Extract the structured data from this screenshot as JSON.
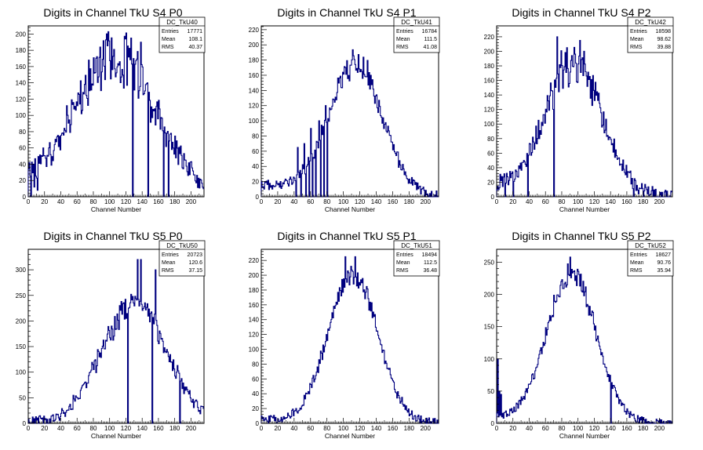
{
  "colors": {
    "histogram_line": "#00007f",
    "axis": "#000000",
    "background": "#ffffff"
  },
  "chart_data": [
    {
      "type": "histogram",
      "title": "Digits in Channel TkU S4 P0",
      "xlabel": "Channel Number",
      "ylabel": "",
      "xlim": [
        0,
        216
      ],
      "ylim": [
        0,
        210
      ],
      "xticks": [
        0,
        20,
        40,
        60,
        80,
        100,
        120,
        140,
        160,
        180,
        200
      ],
      "yticks": [
        0,
        20,
        40,
        60,
        80,
        100,
        120,
        140,
        160,
        180,
        200
      ],
      "stats": {
        "name": "DC_TkU40",
        "entries": "17771",
        "mean": "108.1",
        "rms": "40.37"
      },
      "profile": {
        "mean": 108,
        "sigma": 50,
        "peak": 165,
        "tail": 12,
        "noise": 0.35,
        "jagged": 20,
        "seed": 40
      },
      "dips": [
        [
          3,
          0
        ],
        [
          7,
          12
        ],
        [
          11,
          8
        ],
        [
          128,
          0
        ],
        [
          147,
          0
        ],
        [
          166,
          0
        ],
        [
          172,
          0
        ]
      ],
      "spikes": [
        [
          1,
          42
        ],
        [
          6,
          40
        ],
        [
          18,
          60
        ],
        [
          126,
          195
        ],
        [
          138,
          190
        ]
      ]
    },
    {
      "type": "histogram",
      "title": "Digits in Channel TkU S4 P1",
      "xlabel": "Channel Number",
      "ylabel": "",
      "xlim": [
        0,
        216
      ],
      "ylim": [
        0,
        225
      ],
      "xticks": [
        0,
        20,
        40,
        60,
        80,
        100,
        120,
        140,
        160,
        180,
        200
      ],
      "yticks": [
        0,
        20,
        40,
        60,
        80,
        100,
        120,
        140,
        160,
        180,
        200,
        220
      ],
      "stats": {
        "name": "DC_TkU41",
        "entries": "16784",
        "mean": "111.5",
        "rms": "41.08"
      },
      "profile": {
        "mean": 115,
        "sigma": 32,
        "peak": 170,
        "tail": 15,
        "noise": 0.2,
        "jagged": 12,
        "seed": 41
      },
      "dips": [
        [
          42,
          0
        ],
        [
          48,
          0
        ],
        [
          54,
          0
        ],
        [
          58,
          0
        ],
        [
          62,
          0
        ],
        [
          66,
          0
        ],
        [
          72,
          0
        ],
        [
          76,
          0
        ],
        [
          80,
          0
        ]
      ],
      "spikes": [
        [
          44,
          65
        ],
        [
          52,
          70
        ],
        [
          60,
          90
        ],
        [
          70,
          100
        ],
        [
          78,
          120
        ]
      ]
    },
    {
      "type": "histogram",
      "title": "Digits in Channel TkU S4 P2",
      "xlabel": "Channel Number",
      "ylabel": "",
      "xlim": [
        0,
        216
      ],
      "ylim": [
        0,
        235
      ],
      "xticks": [
        0,
        20,
        40,
        60,
        80,
        100,
        120,
        140,
        160,
        180,
        200
      ],
      "yticks": [
        0,
        20,
        40,
        60,
        80,
        100,
        120,
        140,
        160,
        180,
        200,
        220
      ],
      "stats": {
        "name": "DC_TkU42",
        "entries": "18598",
        "mean": "98.62",
        "rms": "39.88"
      },
      "profile": {
        "mean": 95,
        "sigma": 34,
        "peak": 175,
        "tail": 15,
        "noise": 0.3,
        "jagged": 18,
        "seed": 42
      },
      "dips": [
        [
          10,
          0
        ],
        [
          20,
          0
        ],
        [
          38,
          0
        ],
        [
          70,
          0
        ],
        [
          168,
          0
        ],
        [
          180,
          0
        ],
        [
          192,
          0
        ],
        [
          205,
          0
        ]
      ],
      "spikes": [
        [
          74,
          220
        ],
        [
          86,
          205
        ],
        [
          102,
          215
        ]
      ]
    },
    {
      "type": "histogram",
      "title": "Digits in Channel TkU S5 P0",
      "xlabel": "Channel Number",
      "ylabel": "",
      "xlim": [
        0,
        216
      ],
      "ylim": [
        0,
        340
      ],
      "xticks": [
        0,
        20,
        40,
        60,
        80,
        100,
        120,
        140,
        160,
        180,
        200
      ],
      "yticks": [
        0,
        50,
        100,
        150,
        200,
        250,
        300
      ],
      "stats": {
        "name": "DC_TkU50",
        "entries": "20723",
        "mean": "120.6",
        "rms": "37.15"
      },
      "profile": {
        "mean": 130,
        "sigma": 40,
        "peak": 230,
        "tail": 0,
        "noise": 0.2,
        "jagged": 22,
        "seed": 50
      },
      "dips": [
        [
          122,
          0
        ],
        [
          152,
          0
        ],
        [
          186,
          0
        ]
      ],
      "spikes": [
        [
          134,
          320
        ],
        [
          138,
          320
        ],
        [
          156,
          300
        ],
        [
          182,
          100
        ]
      ]
    },
    {
      "type": "histogram",
      "title": "Digits in Channel TkU S5 P1",
      "xlabel": "Channel Number",
      "ylabel": "",
      "xlim": [
        0,
        216
      ],
      "ylim": [
        0,
        235
      ],
      "xticks": [
        0,
        20,
        40,
        60,
        80,
        100,
        120,
        140,
        160,
        180,
        200
      ],
      "yticks": [
        0,
        20,
        40,
        60,
        80,
        100,
        120,
        140,
        160,
        180,
        200,
        220
      ],
      "stats": {
        "name": "DC_TkU51",
        "entries": "18494",
        "mean": "112.5",
        "rms": "36.48"
      },
      "profile": {
        "mean": 112,
        "sigma": 30,
        "peak": 200,
        "tail": 5,
        "noise": 0.12,
        "jagged": 12,
        "seed": 51
      },
      "dips": [],
      "spikes": [
        [
          102,
          225
        ],
        [
          114,
          225
        ]
      ]
    },
    {
      "type": "histogram",
      "title": "Digits in Channel TkU S5 P2",
      "xlabel": "Channel Number",
      "ylabel": "",
      "xlim": [
        0,
        216
      ],
      "ylim": [
        0,
        270
      ],
      "xticks": [
        0,
        20,
        40,
        60,
        80,
        100,
        120,
        140,
        160,
        180,
        200
      ],
      "yticks": [
        0,
        50,
        100,
        150,
        200,
        250
      ],
      "stats": {
        "name": "DC_TkU52",
        "entries": "18627",
        "mean": "90.76",
        "rms": "35.94"
      },
      "profile": {
        "mean": 92,
        "sigma": 30,
        "peak": 230,
        "tail": 8,
        "noise": 0.12,
        "jagged": 12,
        "seed": 52
      },
      "dips": [
        [
          140,
          0
        ]
      ],
      "spikes": [
        [
          1,
          100
        ],
        [
          3,
          50
        ],
        [
          5,
          45
        ],
        [
          90,
          258
        ]
      ]
    }
  ],
  "stat_labels": {
    "entries": "Entries",
    "mean": "Mean",
    "rms": "RMS"
  }
}
